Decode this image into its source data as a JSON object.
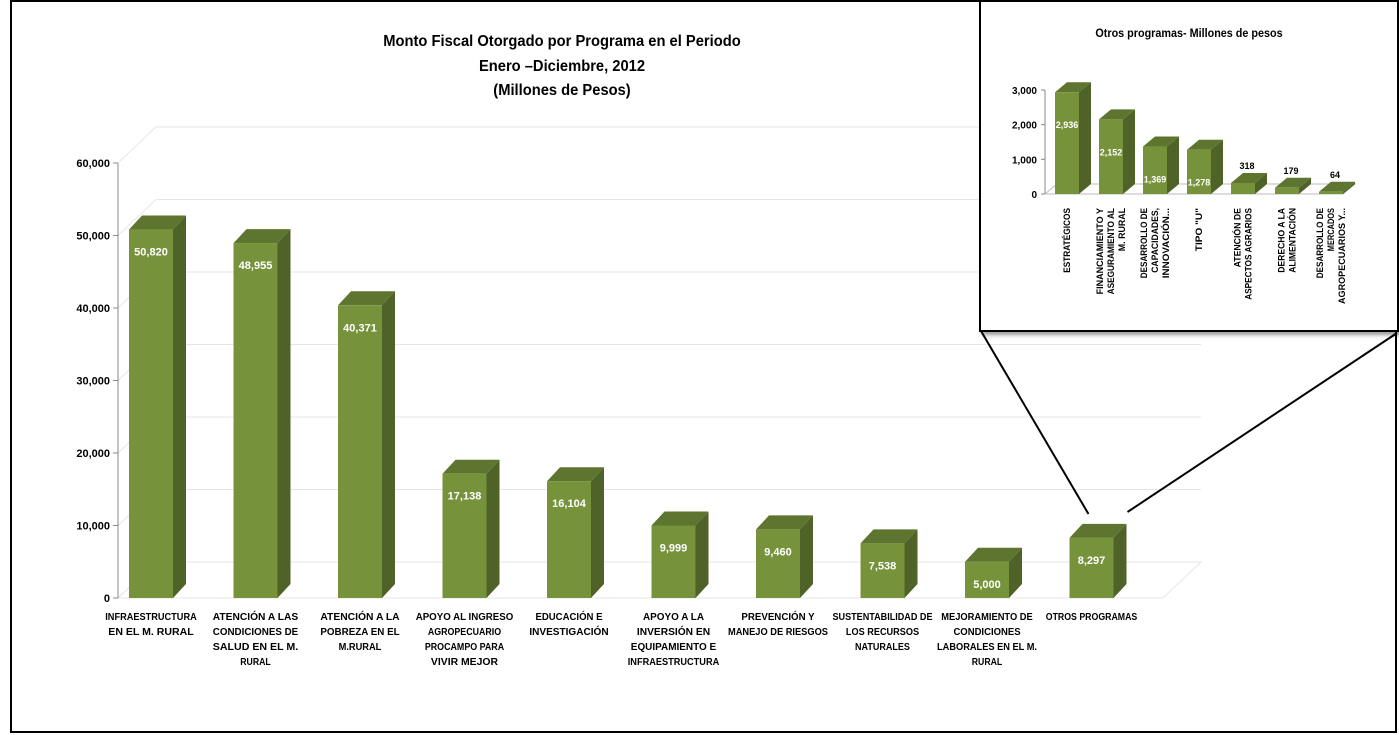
{
  "colors": {
    "bar_front": "#76933C",
    "bar_side": "#4F6228",
    "bar_top": "#5E7530",
    "grid": "#e6e6e6",
    "label_text": "#ffffff"
  },
  "chart_data": [
    {
      "type": "bar",
      "title": [
        "Monto Fiscal Otorgado por Programa en el Periodo",
        "Enero –Diciembre, 2012",
        "(Millones de Pesos)"
      ],
      "categories": [
        [
          "INFRAESTRUCTURA",
          "EN EL M. RURAL"
        ],
        [
          "ATENCIÓN A LAS",
          "CONDICIONES DE",
          "SALUD EN EL M.",
          "RURAL"
        ],
        [
          "ATENCIÓN A LA",
          "POBREZA EN EL",
          "M.RURAL"
        ],
        [
          "APOYO AL INGRESO",
          "AGROPECUARIO",
          "PROCAMPO PARA",
          "VIVIR MEJOR"
        ],
        [
          "EDUCACIÓN E",
          "INVESTIGACIÓN"
        ],
        [
          "APOYO A LA",
          "INVERSIÓN EN",
          "EQUIPAMIENTO E",
          "INFRAESTRUCTURA"
        ],
        [
          "PREVENCIÓN Y",
          "MANEJO DE RIESGOS"
        ],
        [
          "SUSTENTABILIDAD DE",
          "LOS RECURSOS",
          "NATURALES"
        ],
        [
          "MEJORAMIENTO DE",
          "CONDICIONES",
          "LABORALES EN EL M.",
          "RURAL"
        ],
        [
          "OTROS PROGRAMAS"
        ]
      ],
      "values": [
        50820,
        48955,
        40371,
        17138,
        16104,
        9999,
        9460,
        7538,
        5000,
        8297
      ],
      "data_labels": [
        "50,820",
        "48,955",
        "40,371",
        "17,138",
        "16,104",
        "9,999",
        "9,460",
        "7,538",
        "5,000",
        "8,297"
      ],
      "ylim": [
        0,
        60000
      ],
      "yticks": [
        "0",
        "10,000",
        "20,000",
        "30,000",
        "40,000",
        "50,000",
        "60,000"
      ],
      "grid": true,
      "three_d": true
    },
    {
      "type": "bar",
      "title": "Otros programas- Millones de pesos",
      "categories": [
        [
          "ESTRATÉGICOS"
        ],
        [
          "FINANCIAMIENTO Y",
          "ASEGURAMIENTO AL",
          "M. RURAL"
        ],
        [
          "DESARROLLO DE",
          "CAPACIDADES,",
          "INNOVACIÓN..."
        ],
        [
          "TIPO \"U\""
        ],
        [
          "ATENCIÓN DE",
          "ASPECTOS AGRARIOS"
        ],
        [
          "DERECHO A LA",
          "ALIMENTACIÓN"
        ],
        [
          "DESARROLLO DE",
          "MERCADOS",
          "AGROPECUARIOS Y..."
        ]
      ],
      "values": [
        2936,
        2152,
        1369,
        1278,
        318,
        179,
        64
      ],
      "data_labels": [
        "2,936",
        "2,152",
        "1,369",
        "1,278",
        "318",
        "179",
        "64"
      ],
      "ylim": [
        0,
        3000
      ],
      "yticks": [
        "0",
        "1,000",
        "2,000",
        "3,000"
      ],
      "grid": false,
      "three_d": true
    }
  ]
}
